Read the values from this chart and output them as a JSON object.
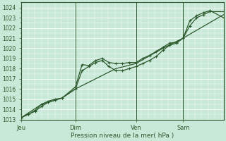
{
  "background_color": "#c8e8d8",
  "grid_color": "#b0d8c0",
  "line_color": "#2d5a2d",
  "ylim": [
    1013,
    1024.5
  ],
  "yticks": [
    1013,
    1014,
    1015,
    1016,
    1017,
    1018,
    1019,
    1020,
    1021,
    1022,
    1023,
    1024
  ],
  "xlabel": "Pression niveau de la mer( hPa )",
  "xlabel_color": "#2d5a2d",
  "tick_color": "#2d5a2d",
  "xtick_labels": [
    "Jeu",
    "Dim",
    "Ven",
    "Sam"
  ],
  "xtick_positions": [
    0.0,
    0.267,
    0.567,
    0.8
  ],
  "vline_positions": [
    0.0,
    0.267,
    0.567,
    0.8
  ],
  "series1_x": [
    0.0,
    0.033,
    0.067,
    0.1,
    0.133,
    0.167,
    0.2,
    0.267,
    0.3,
    0.333,
    0.367,
    0.4,
    0.433,
    0.467,
    0.5,
    0.533,
    0.567,
    0.6,
    0.633,
    0.667,
    0.7,
    0.733,
    0.767,
    0.8,
    0.833,
    0.867,
    0.9,
    0.933,
    1.0
  ],
  "series1_y": [
    1013.2,
    1013.5,
    1013.8,
    1014.3,
    1014.7,
    1014.9,
    1015.1,
    1016.2,
    1018.4,
    1018.3,
    1018.8,
    1019.0,
    1018.6,
    1018.5,
    1018.5,
    1018.6,
    1018.6,
    1019.0,
    1019.3,
    1019.7,
    1020.1,
    1020.5,
    1020.6,
    1021.0,
    1022.7,
    1023.2,
    1023.5,
    1023.7,
    1023.0
  ],
  "series2_x": [
    0.0,
    0.033,
    0.067,
    0.1,
    0.133,
    0.167,
    0.2,
    0.267,
    0.3,
    0.333,
    0.367,
    0.4,
    0.433,
    0.467,
    0.5,
    0.533,
    0.567,
    0.6,
    0.633,
    0.667,
    0.7,
    0.733,
    0.767,
    0.8,
    0.833,
    0.867,
    0.9,
    0.933,
    1.0
  ],
  "series2_y": [
    1013.2,
    1013.5,
    1013.9,
    1014.5,
    1014.8,
    1015.0,
    1015.1,
    1016.0,
    1017.8,
    1018.2,
    1018.6,
    1018.8,
    1018.2,
    1017.8,
    1017.8,
    1018.0,
    1018.2,
    1018.5,
    1018.8,
    1019.2,
    1019.8,
    1020.3,
    1020.5,
    1021.0,
    1022.2,
    1023.0,
    1023.3,
    1023.6,
    1023.6
  ],
  "series3_x": [
    0.0,
    0.1,
    0.2,
    0.267,
    0.467,
    0.567,
    0.7,
    0.8,
    1.0
  ],
  "series3_y": [
    1013.2,
    1014.5,
    1015.1,
    1016.0,
    1018.0,
    1018.5,
    1020.0,
    1021.0,
    1023.3
  ]
}
